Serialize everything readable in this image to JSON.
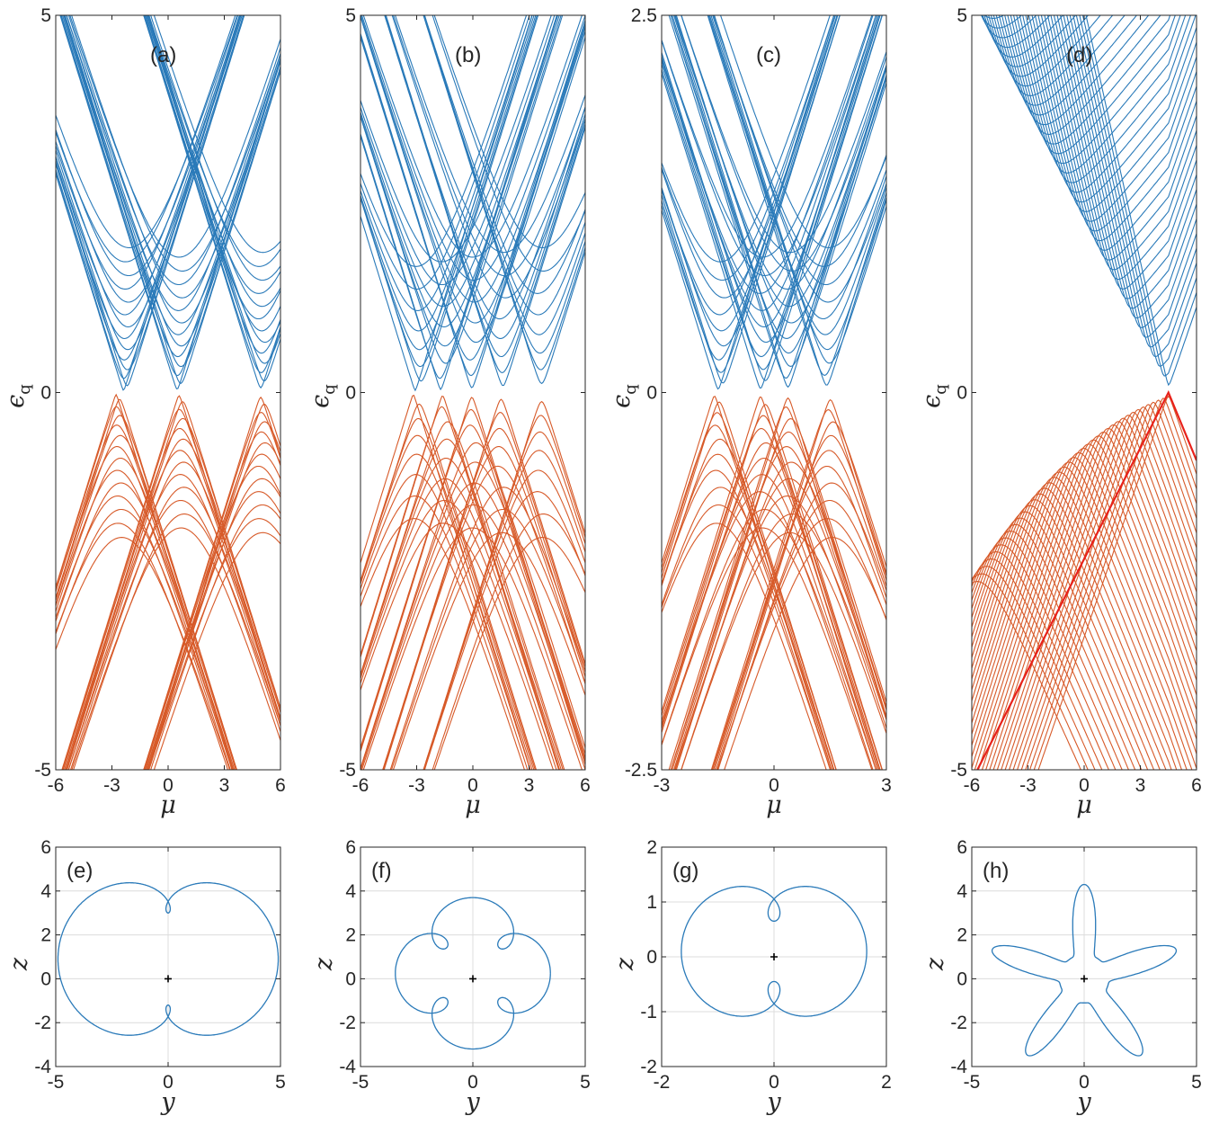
{
  "colors": {
    "upper_band": "#2a7ab9",
    "lower_band": "#d75a29",
    "edge_state": "#e8221b",
    "orbit": "#2a7ab9",
    "origin_marker": "#000000",
    "axes": "#262626",
    "grid": "#dcdcdc"
  },
  "chart_data": [
    {
      "id": "a",
      "type": "line",
      "panel_label": "(a)",
      "xlabel": "μ",
      "ylabel": "ϵ",
      "ylabel_subscript": "q",
      "xlim": [
        -6,
        6
      ],
      "ylim": [
        -5,
        5
      ],
      "xticks": [
        "-6",
        "-3",
        "0",
        "3",
        "6"
      ],
      "yticks": [
        "-5",
        "0",
        "5"
      ],
      "series": [
        {
          "band": "upper",
          "minima_mu": [
            -2.2,
            0.6,
            5.0
          ],
          "lines": 40
        },
        {
          "band": "lower",
          "maxima_mu": [
            -2.6,
            0.7,
            5.0
          ],
          "lines": 40
        }
      ]
    },
    {
      "id": "b",
      "type": "line",
      "panel_label": "(b)",
      "xlabel": "μ",
      "ylabel": "ϵ",
      "ylabel_subscript": "q",
      "xlim": [
        -6,
        6
      ],
      "ylim": [
        -5,
        5
      ],
      "xticks": [
        "-6",
        "-3",
        "0",
        "3",
        "6"
      ],
      "yticks": [
        "-5",
        "0",
        "5"
      ],
      "series": [
        {
          "band": "upper",
          "minima_mu": [
            -2.9,
            -1.6,
            0.0,
            1.6,
            3.6
          ],
          "lines": 40
        },
        {
          "band": "lower",
          "maxima_mu": [
            -3.0,
            -1.5,
            0.0,
            1.5,
            3.6
          ],
          "lines": 40
        }
      ]
    },
    {
      "id": "c",
      "type": "line",
      "panel_label": "(c)",
      "xlabel": "μ",
      "ylabel": "ϵ",
      "ylabel_subscript": "q",
      "xlim": [
        -3,
        3
      ],
      "ylim": [
        -2.5,
        2.5
      ],
      "xticks": [
        "-3",
        "0",
        "3"
      ],
      "yticks": [
        "-2.5",
        "0",
        "2.5"
      ],
      "series": [
        {
          "band": "upper",
          "minima_mu": [
            -1.4,
            -0.3,
            0.4,
            1.4
          ],
          "lines": 40
        },
        {
          "band": "lower",
          "maxima_mu": [
            -1.5,
            -0.3,
            0.4,
            1.5
          ],
          "lines": 40
        }
      ]
    },
    {
      "id": "d",
      "type": "line",
      "panel_label": "(d)",
      "xlabel": "μ",
      "ylabel": "ϵ",
      "ylabel_subscript": "q",
      "xlim": [
        -6,
        6
      ],
      "ylim": [
        -5,
        5
      ],
      "xticks": [
        "-6",
        "-3",
        "0",
        "3",
        "6"
      ],
      "yticks": [
        "-5",
        "0",
        "5"
      ],
      "series": [
        {
          "band": "upper",
          "touch_mu": 4.5,
          "lines": 40
        },
        {
          "band": "lower",
          "touch_mu": 4.5,
          "lines": 40
        },
        {
          "band": "edge",
          "from": [
            -5.7,
            -5
          ],
          "to": [
            6,
            -0.9
          ],
          "peak_mu": 4.5
        }
      ]
    },
    {
      "id": "e",
      "type": "line",
      "panel_label": "(e)",
      "xlabel": "y",
      "ylabel": "z",
      "xlim": [
        -5,
        5
      ],
      "ylim": [
        -4,
        6
      ],
      "xticks": [
        "-5",
        "0",
        "5"
      ],
      "yticks": [
        "-4",
        "-2",
        "0",
        "2",
        "4",
        "6"
      ],
      "curve": {
        "kind": "epitrochoid",
        "big_radius": 3.5,
        "small_radius": 1.4,
        "y0": 0,
        "z0": 0.9,
        "petals": 3
      }
    },
    {
      "id": "f",
      "type": "line",
      "panel_label": "(f)",
      "xlabel": "y",
      "ylabel": "z",
      "xlim": [
        -5,
        5
      ],
      "ylim": [
        -4,
        6
      ],
      "xticks": [
        "-5",
        "0",
        "5"
      ],
      "yticks": [
        "-4",
        "-2",
        "0",
        "2",
        "4",
        "6"
      ],
      "curve": {
        "kind": "epitrochoid",
        "big_radius": 2.55,
        "small_radius": 0.9,
        "y0": 0,
        "z0": 0.25,
        "petals": 5
      }
    },
    {
      "id": "g",
      "type": "line",
      "panel_label": "(g)",
      "xlabel": "y",
      "ylabel": "z",
      "xlim": [
        -2,
        2
      ],
      "ylim": [
        -2,
        2
      ],
      "xticks": [
        "-2",
        "0",
        "2"
      ],
      "yticks": [
        "-2",
        "-1",
        "0",
        "1",
        "2"
      ],
      "curve": {
        "kind": "epitrochoid",
        "big_radius": 1.1,
        "small_radius": 0.55,
        "y0": 0,
        "z0": 0.1,
        "petals": 3
      }
    },
    {
      "id": "h",
      "type": "line",
      "panel_label": "(h)",
      "xlabel": "y",
      "ylabel": "z",
      "xlim": [
        -5,
        5
      ],
      "ylim": [
        -4,
        6
      ],
      "xticks": [
        "-5",
        "0",
        "5"
      ],
      "yticks": [
        "-4",
        "-2",
        "0",
        "2",
        "4",
        "6"
      ],
      "curve": {
        "kind": "star",
        "petals": 5,
        "tip_radius": 4.3,
        "inner_radius": 1.1,
        "y0": 0,
        "z0": 0
      }
    }
  ]
}
